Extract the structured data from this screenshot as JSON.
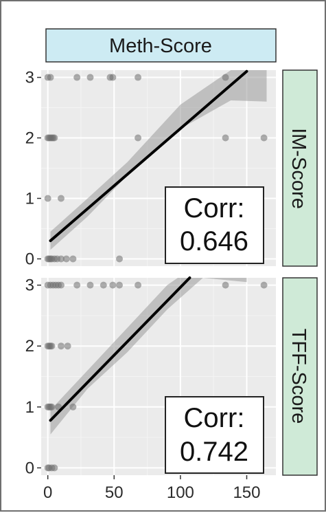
{
  "chart_data": {
    "type": "scatter",
    "facet_column_label": "Meth-Score",
    "x_ticks": [
      0,
      50,
      100,
      150
    ],
    "xlim": [
      -5,
      172
    ],
    "colors": {
      "panel": "#ebebeb",
      "grid_major": "#ffffff",
      "grid_minor": "#f4f4f4",
      "strip_column": "#cdebf3",
      "strip_row": "#cfead7",
      "points": "#6e6e6e",
      "fit_line": "#000000",
      "ribbon": "#9a9a9a"
    },
    "panels": [
      {
        "row_label": "IM-Score",
        "y_ticks": [
          0,
          1,
          2,
          3
        ],
        "ylim": [
          -0.12,
          3.12
        ],
        "corr_label": "Corr:",
        "corr_value": "0.646",
        "points": [
          [
            0,
            3
          ],
          [
            2,
            3
          ],
          [
            22,
            3
          ],
          [
            32,
            3
          ],
          [
            47,
            3
          ],
          [
            49,
            3
          ],
          [
            68,
            3
          ],
          [
            134,
            3
          ],
          [
            0,
            2
          ],
          [
            1,
            2
          ],
          [
            2,
            2
          ],
          [
            3,
            2
          ],
          [
            4,
            2
          ],
          [
            5,
            2
          ],
          [
            68,
            2
          ],
          [
            134,
            2
          ],
          [
            163,
            2
          ],
          [
            0,
            1
          ],
          [
            10,
            1
          ],
          [
            0,
            0
          ],
          [
            1,
            0
          ],
          [
            2,
            0
          ],
          [
            3,
            0
          ],
          [
            5,
            0
          ],
          [
            7,
            0
          ],
          [
            10,
            0
          ],
          [
            14,
            0
          ],
          [
            19,
            0
          ],
          [
            54,
            0
          ]
        ],
        "fit": {
          "x0": 2,
          "y0": 0.3,
          "x1": 150,
          "y1": 3.1
        },
        "ribbon_upper": [
          [
            2,
            0.45
          ],
          [
            30,
            1.0
          ],
          [
            60,
            1.6
          ],
          [
            100,
            2.55
          ],
          [
            138,
            3.12
          ],
          [
            165,
            3.12
          ]
        ],
        "ribbon_lower": [
          [
            165,
            2.6
          ],
          [
            138,
            2.62
          ],
          [
            100,
            2.15
          ],
          [
            60,
            1.38
          ],
          [
            30,
            0.7
          ],
          [
            2,
            0.15
          ]
        ]
      },
      {
        "row_label": "TFF-Score",
        "y_ticks": [
          0,
          1,
          2,
          3
        ],
        "ylim": [
          -0.12,
          3.12
        ],
        "corr_label": "Corr:",
        "corr_value": "0.742",
        "points": [
          [
            0,
            3
          ],
          [
            2,
            3
          ],
          [
            4,
            3
          ],
          [
            6,
            3
          ],
          [
            8,
            3
          ],
          [
            10,
            3
          ],
          [
            22,
            3
          ],
          [
            32,
            3
          ],
          [
            42,
            3
          ],
          [
            49,
            3
          ],
          [
            54,
            3
          ],
          [
            68,
            3
          ],
          [
            134,
            3
          ],
          [
            163,
            3
          ],
          [
            0,
            2
          ],
          [
            1,
            2
          ],
          [
            2,
            2
          ],
          [
            3,
            2
          ],
          [
            10,
            2
          ],
          [
            15,
            2
          ],
          [
            0,
            1
          ],
          [
            1,
            1
          ],
          [
            2,
            1
          ],
          [
            3,
            1
          ],
          [
            8,
            1
          ],
          [
            19,
            1
          ],
          [
            0,
            0
          ],
          [
            1,
            0
          ],
          [
            3,
            0
          ],
          [
            5,
            0
          ]
        ],
        "fit": {
          "x0": 2,
          "y0": 0.78,
          "x1": 107,
          "y1": 3.12
        },
        "ribbon_upper": [
          [
            2,
            0.95
          ],
          [
            30,
            1.6
          ],
          [
            60,
            2.3
          ],
          [
            90,
            3.0
          ],
          [
            98,
            3.12
          ],
          [
            150,
            3.12
          ]
        ],
        "ribbon_lower": [
          [
            150,
            3.05
          ],
          [
            117,
            3.12
          ],
          [
            90,
            2.6
          ],
          [
            60,
            1.9
          ],
          [
            30,
            1.3
          ],
          [
            2,
            0.55
          ]
        ]
      }
    ]
  }
}
